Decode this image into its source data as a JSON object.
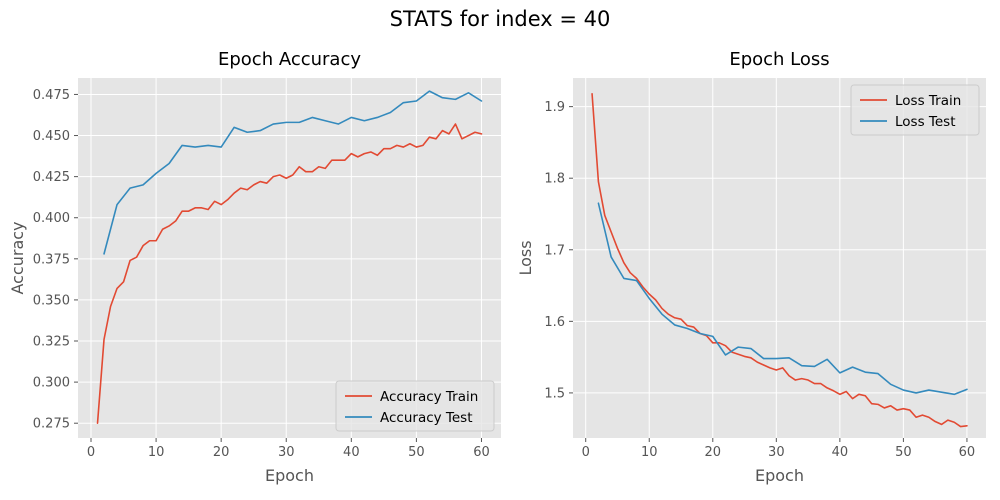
{
  "suptitle": "STATS for index = 40",
  "chart_data": [
    {
      "type": "line",
      "title": "Epoch Accuracy",
      "xlabel": "Epoch",
      "ylabel": "Accuracy",
      "xlim": [
        -2,
        63
      ],
      "ylim": [
        0.266,
        0.485
      ],
      "xticks": [
        0,
        10,
        20,
        30,
        40,
        50,
        60
      ],
      "yticks": [
        0.275,
        0.3,
        0.325,
        0.35,
        0.375,
        0.4,
        0.425,
        0.45,
        0.475
      ],
      "ytick_labels": [
        "0.275",
        "0.300",
        "0.325",
        "0.350",
        "0.375",
        "0.400",
        "0.425",
        "0.450",
        "0.475"
      ],
      "grid": true,
      "legend_position": "lower-right",
      "series": [
        {
          "name": "Accuracy Train",
          "color": "#E24A33",
          "x": [
            1,
            2,
            3,
            4,
            5,
            6,
            7,
            8,
            9,
            10,
            11,
            12,
            13,
            14,
            15,
            16,
            17,
            18,
            19,
            20,
            21,
            22,
            23,
            24,
            25,
            26,
            27,
            28,
            29,
            30,
            31,
            32,
            33,
            34,
            35,
            36,
            37,
            38,
            39,
            40,
            41,
            42,
            43,
            44,
            45,
            46,
            47,
            48,
            49,
            50,
            51,
            52,
            53,
            54,
            55,
            56,
            57,
            58,
            59,
            60
          ],
          "y": [
            0.275,
            0.326,
            0.346,
            0.357,
            0.361,
            0.374,
            0.376,
            0.383,
            0.386,
            0.386,
            0.393,
            0.395,
            0.398,
            0.404,
            0.404,
            0.406,
            0.406,
            0.405,
            0.41,
            0.408,
            0.411,
            0.415,
            0.418,
            0.417,
            0.42,
            0.422,
            0.421,
            0.425,
            0.426,
            0.424,
            0.426,
            0.431,
            0.428,
            0.428,
            0.431,
            0.43,
            0.435,
            0.435,
            0.435,
            0.439,
            0.437,
            0.439,
            0.44,
            0.438,
            0.442,
            0.442,
            0.444,
            0.443,
            0.445,
            0.443,
            0.444,
            0.449,
            0.448,
            0.453,
            0.451,
            0.457,
            0.448,
            0.45,
            0.452,
            0.451
          ]
        },
        {
          "name": "Accuracy Test",
          "color": "#348ABD",
          "x": [
            2,
            4,
            6,
            8,
            10,
            12,
            14,
            16,
            18,
            20,
            22,
            24,
            26,
            28,
            30,
            32,
            34,
            36,
            38,
            40,
            42,
            44,
            46,
            48,
            50,
            52,
            54,
            56,
            58,
            60
          ],
          "y": [
            0.378,
            0.408,
            0.418,
            0.42,
            0.427,
            0.433,
            0.444,
            0.443,
            0.444,
            0.443,
            0.455,
            0.452,
            0.453,
            0.457,
            0.458,
            0.458,
            0.461,
            0.459,
            0.457,
            0.461,
            0.459,
            0.461,
            0.464,
            0.47,
            0.471,
            0.477,
            0.473,
            0.472,
            0.476,
            0.471
          ]
        }
      ]
    },
    {
      "type": "line",
      "title": "Epoch Loss",
      "xlabel": "Epoch",
      "ylabel": "Loss",
      "xlim": [
        -2,
        63
      ],
      "ylim": [
        1.437,
        1.94
      ],
      "xticks": [
        0,
        10,
        20,
        30,
        40,
        50,
        60
      ],
      "yticks": [
        1.5,
        1.6,
        1.7,
        1.8,
        1.9
      ],
      "ytick_labels": [
        "1.5",
        "1.6",
        "1.7",
        "1.8",
        "1.9"
      ],
      "grid": true,
      "legend_position": "upper-right",
      "series": [
        {
          "name": "Loss Train",
          "color": "#E24A33",
          "x": [
            1,
            2,
            3,
            4,
            5,
            6,
            7,
            8,
            9,
            10,
            11,
            12,
            13,
            14,
            15,
            16,
            17,
            18,
            19,
            20,
            21,
            22,
            23,
            24,
            25,
            26,
            27,
            28,
            29,
            30,
            31,
            32,
            33,
            34,
            35,
            36,
            37,
            38,
            39,
            40,
            41,
            42,
            43,
            44,
            45,
            46,
            47,
            48,
            49,
            50,
            51,
            52,
            53,
            54,
            55,
            56,
            57,
            58,
            59,
            60
          ],
          "y": [
            1.918,
            1.795,
            1.748,
            1.725,
            1.702,
            1.682,
            1.668,
            1.66,
            1.648,
            1.638,
            1.63,
            1.618,
            1.61,
            1.605,
            1.603,
            1.594,
            1.592,
            1.583,
            1.58,
            1.57,
            1.57,
            1.566,
            1.557,
            1.554,
            1.551,
            1.549,
            1.543,
            1.539,
            1.535,
            1.532,
            1.535,
            1.524,
            1.518,
            1.52,
            1.518,
            1.513,
            1.513,
            1.507,
            1.503,
            1.498,
            1.502,
            1.492,
            1.498,
            1.496,
            1.485,
            1.484,
            1.479,
            1.482,
            1.476,
            1.478,
            1.476,
            1.466,
            1.469,
            1.466,
            1.46,
            1.456,
            1.462,
            1.459,
            1.453,
            1.454
          ]
        },
        {
          "name": "Loss Test",
          "color": "#348ABD",
          "x": [
            2,
            4,
            6,
            8,
            10,
            12,
            14,
            16,
            18,
            20,
            22,
            24,
            26,
            28,
            30,
            32,
            34,
            36,
            38,
            40,
            42,
            44,
            46,
            48,
            50,
            52,
            54,
            56,
            58,
            60
          ],
          "y": [
            1.765,
            1.69,
            1.66,
            1.657,
            1.632,
            1.61,
            1.595,
            1.59,
            1.583,
            1.579,
            1.553,
            1.564,
            1.562,
            1.548,
            1.548,
            1.549,
            1.538,
            1.537,
            1.547,
            1.528,
            1.536,
            1.529,
            1.527,
            1.512,
            1.504,
            1.5,
            1.504,
            1.501,
            1.498,
            1.505
          ]
        }
      ]
    }
  ]
}
